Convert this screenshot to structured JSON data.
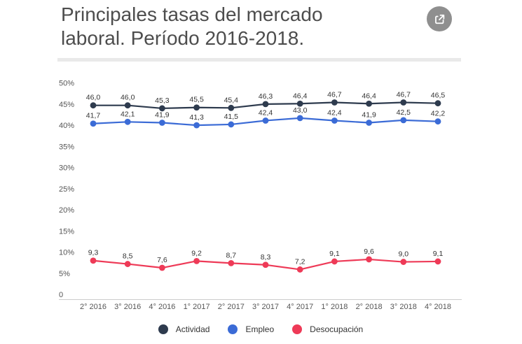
{
  "header": {
    "title_lines": [
      "Principales tasas del mercado",
      "laboral. Período 2016-2018."
    ],
    "share_icon": "export-arrow-icon"
  },
  "colors": {
    "title_text": "#4d4d4d",
    "divider": "#e9e9e9",
    "share_button_bg": "#8f8f8f",
    "axis_line": "#cccccc",
    "tick_text": "#555555",
    "value_label_text": "#333333"
  },
  "chart_data": {
    "type": "line",
    "title": "Principales tasas del mercado laboral. Período 2016-2018.",
    "categories": [
      "2° 2016",
      "3° 2016",
      "4° 2016",
      "1° 2017",
      "2° 2017",
      "3° 2017",
      "4° 2017",
      "1° 2018",
      "2° 2018",
      "3° 2018",
      "4° 2018"
    ],
    "series": [
      {
        "name": "Actividad",
        "color": "#2e3b4e",
        "values": [
          46.0,
          46.0,
          45.3,
          45.5,
          45.4,
          46.3,
          46.4,
          46.7,
          46.4,
          46.7,
          46.5
        ]
      },
      {
        "name": "Empleo",
        "color": "#3b6bd6",
        "values": [
          41.7,
          42.1,
          41.9,
          41.3,
          41.5,
          42.4,
          43.0,
          42.4,
          41.9,
          42.5,
          42.2
        ]
      },
      {
        "name": "Desocupación",
        "color": "#ee3a57",
        "values": [
          9.3,
          8.5,
          7.6,
          9.2,
          8.7,
          8.3,
          7.2,
          9.1,
          9.6,
          9.0,
          9.1
        ]
      }
    ],
    "xlabel": "",
    "ylabel": "",
    "y_axis": {
      "ticks": [
        0,
        5,
        10,
        15,
        20,
        25,
        30,
        35,
        40,
        45,
        50
      ],
      "unit": "%",
      "range": [
        0,
        50
      ]
    },
    "grid": false,
    "legend_position": "bottom",
    "decimal_separator": ",",
    "data_labels": true
  }
}
